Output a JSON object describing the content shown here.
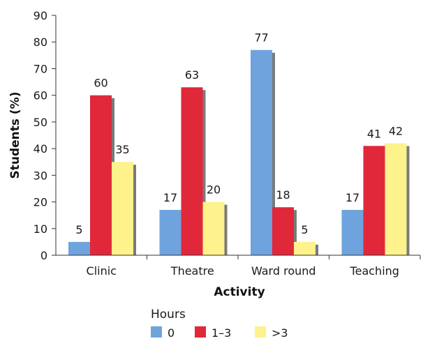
{
  "chart_data": {
    "type": "bar",
    "xlabel": "Activity",
    "ylabel": "Students (%)",
    "ylim": [
      0,
      90
    ],
    "yticks": [
      "0",
      "10",
      "20",
      "30",
      "40",
      "50",
      "60",
      "70",
      "80",
      "90"
    ],
    "categories": [
      "Clinic",
      "Theatre",
      "Ward round",
      "Teaching"
    ],
    "legend_title": "Hours",
    "legend_position": "bottom",
    "grid": false,
    "series": [
      {
        "name": "0",
        "color": "#6fa3dd",
        "values": [
          5,
          17,
          77,
          17
        ]
      },
      {
        "name": "1–3",
        "color": "#e0283a",
        "values": [
          60,
          63,
          18,
          41
        ]
      },
      {
        "name": ">3",
        "color": "#fdf28b",
        "values": [
          35,
          20,
          5,
          42
        ]
      }
    ],
    "data_labels": [
      [
        "5",
        "60",
        "35"
      ],
      [
        "17",
        "63",
        "20"
      ],
      [
        "77",
        "18",
        "5"
      ],
      [
        "17",
        "41",
        "42"
      ]
    ]
  }
}
